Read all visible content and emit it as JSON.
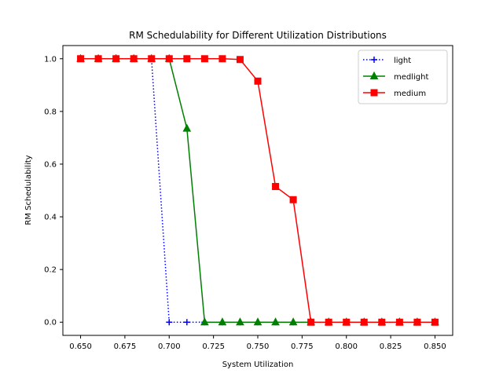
{
  "chart_data": {
    "type": "line",
    "title": "RM Schedulability for Different Utilization Distributions",
    "xlabel": "System Utilization",
    "ylabel": "RM Schedulability",
    "xlim": [
      0.64,
      0.86
    ],
    "ylim": [
      -0.05,
      1.05
    ],
    "xticks": [
      0.65,
      0.675,
      0.7,
      0.725,
      0.75,
      0.775,
      0.8,
      0.825,
      0.85
    ],
    "xtick_labels": [
      "0.650",
      "0.675",
      "0.700",
      "0.725",
      "0.750",
      "0.775",
      "0.800",
      "0.825",
      "0.850"
    ],
    "yticks": [
      0.0,
      0.2,
      0.4,
      0.6,
      0.8,
      1.0
    ],
    "ytick_labels": [
      "0.0",
      "0.2",
      "0.4",
      "0.6",
      "0.8",
      "1.0"
    ],
    "grid": false,
    "legend_position": "top-right",
    "x": [
      0.65,
      0.66,
      0.67,
      0.68,
      0.69,
      0.7,
      0.71,
      0.72,
      0.73,
      0.74,
      0.75,
      0.76,
      0.77,
      0.78,
      0.79,
      0.8,
      0.81,
      0.82,
      0.83,
      0.84,
      0.85
    ],
    "series": [
      {
        "name": "light",
        "color": "#0000ff",
        "line_style": "dotted",
        "marker": "plus",
        "values": [
          1.0,
          1.0,
          1.0,
          1.0,
          1.0,
          0.0,
          0.0,
          0.0,
          0.0,
          0.0,
          0.0,
          0.0,
          0.0,
          0.0,
          0.0,
          0.0,
          0.0,
          0.0,
          0.0,
          0.0,
          0.0
        ]
      },
      {
        "name": "medlight",
        "color": "#008000",
        "line_style": "solid",
        "marker": "triangle",
        "values": [
          1.0,
          1.0,
          1.0,
          1.0,
          1.0,
          1.0,
          0.735,
          0.0,
          0.0,
          0.0,
          0.0,
          0.0,
          0.0,
          0.0,
          0.0,
          0.0,
          0.0,
          0.0,
          0.0,
          0.0,
          0.0
        ]
      },
      {
        "name": "medium",
        "color": "#ff0000",
        "line_style": "solid",
        "marker": "square",
        "values": [
          1.0,
          1.0,
          1.0,
          1.0,
          1.0,
          1.0,
          1.0,
          1.0,
          1.0,
          0.997,
          0.915,
          0.515,
          0.465,
          0.0,
          0.0,
          0.0,
          0.0,
          0.0,
          0.0,
          0.0,
          0.0
        ]
      }
    ]
  }
}
